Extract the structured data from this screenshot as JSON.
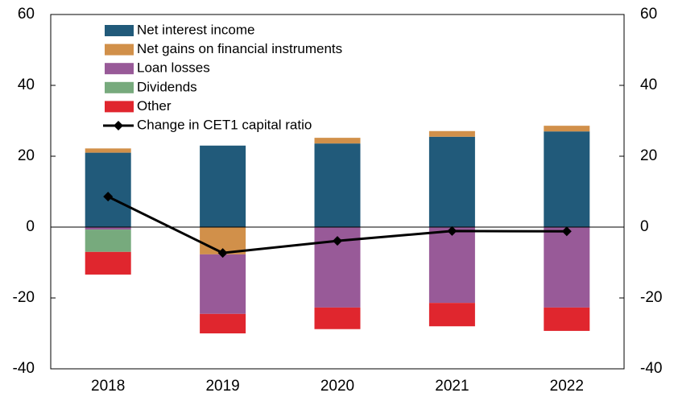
{
  "chart_data": {
    "type": "bar",
    "stacked": true,
    "categories": [
      "2018",
      "2019",
      "2020",
      "2021",
      "2022"
    ],
    "series": [
      {
        "name": "Net interest income",
        "color": "#215a7a",
        "values": [
          21,
          23,
          23.6,
          25.5,
          27
        ]
      },
      {
        "name": "Net gains on financial instruments",
        "color": "#d1904a",
        "values": [
          1.2,
          -7.7,
          1.6,
          1.6,
          1.6
        ]
      },
      {
        "name": "Loan losses",
        "color": "#985a98",
        "values": [
          -0.7,
          -16.8,
          -22.7,
          -21.4,
          -22.7
        ]
      },
      {
        "name": "Dividends",
        "color": "#77aa7d",
        "values": [
          -6.3,
          0,
          0,
          0,
          0
        ]
      },
      {
        "name": "Other",
        "color": "#e0262e",
        "values": [
          -6.4,
          -5.5,
          -6.1,
          -6.6,
          -6.6
        ]
      },
      {
        "name": "Change in CET1 capital ratio",
        "color": "#000000",
        "type": "line",
        "values": [
          8.6,
          -7.3,
          -3.9,
          -1.1,
          -1.2
        ]
      }
    ],
    "ylim": [
      -40,
      60
    ],
    "yticks": [
      -40,
      -20,
      0,
      20,
      40,
      60
    ],
    "y2lim": [
      -40,
      60
    ],
    "y2ticks": [
      -40,
      -20,
      0,
      20,
      40,
      60
    ],
    "grid": false,
    "legend": "upper left"
  }
}
